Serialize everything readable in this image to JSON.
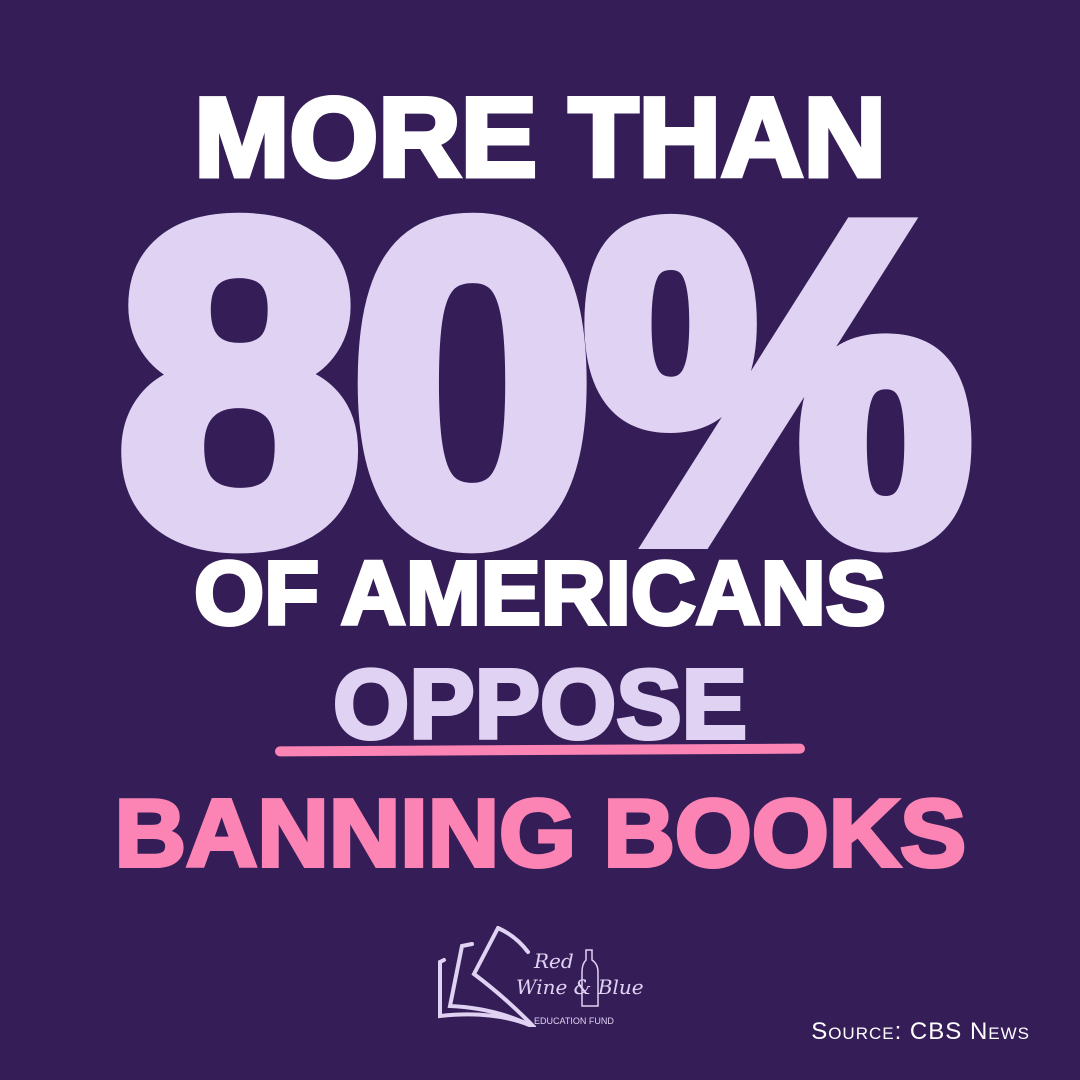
{
  "headline": {
    "line1": "MORE THAN",
    "stat": "80%",
    "line3": "OF AMERICANS",
    "line4": "OPPOSE",
    "line5": "BANNING BOOKS"
  },
  "logo": {
    "name_line1": "Red",
    "name_line2": "Wine & Blue",
    "subtitle": "EDUCATION FUND"
  },
  "source": "Source: CBS News",
  "colors": {
    "background": "#351d58",
    "lavender": "#e0d2f2",
    "pink": "#fb84b4",
    "white": "#ffffff"
  }
}
